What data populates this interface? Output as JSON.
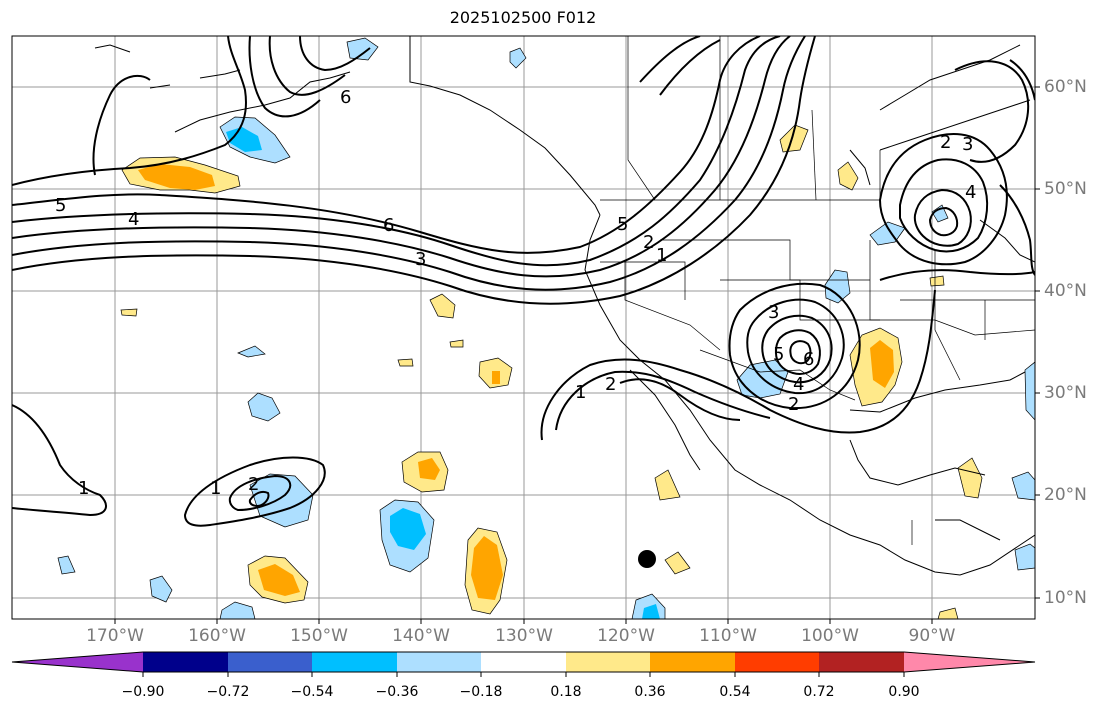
{
  "title": "2025102500 F012",
  "longitude_labels": [
    "170°W",
    "160°W",
    "150°W",
    "140°W",
    "130°W",
    "120°W",
    "110°W",
    "100°W",
    "90°W"
  ],
  "latitude_labels": [
    "60°N",
    "50°N",
    "40°N",
    "30°N",
    "20°N",
    "10°N"
  ],
  "colorbar": {
    "tick_labels": [
      "−0.90",
      "−0.72",
      "−0.54",
      "−0.36",
      "−0.18",
      "0.18",
      "0.36",
      "0.54",
      "0.72",
      "0.90"
    ],
    "colors": [
      "#9932CC",
      "#00008B",
      "#3A5FCD",
      "#00BFFF",
      "#ADDFFF",
      "#FFFFFF",
      "#FFE98A",
      "#FFA500",
      "#FF3D00",
      "#B22222",
      "#FF88AA"
    ]
  },
  "contour_labels": [
    "5",
    "6",
    "4",
    "6",
    "3",
    "5",
    "2",
    "1",
    "2",
    "3",
    "4",
    "3",
    "6",
    "5",
    "4",
    "2",
    "1",
    "2",
    "1",
    "2",
    "1"
  ]
}
